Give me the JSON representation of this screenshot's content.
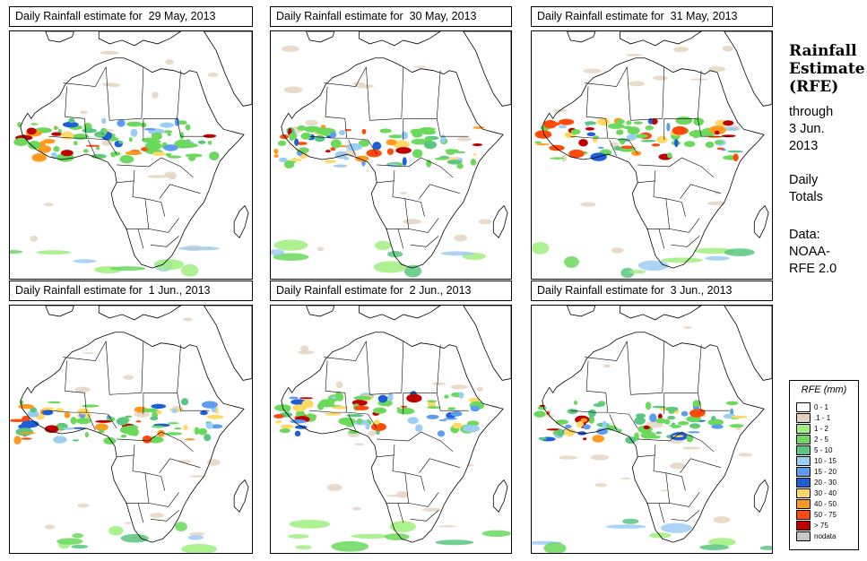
{
  "figure": {
    "panels": [
      {
        "title": "Daily Rainfall estimate for  29 May, 2013"
      },
      {
        "title": "Daily Rainfall estimate for  30 May, 2013"
      },
      {
        "title": "Daily Rainfall estimate for  31 May, 2013"
      },
      {
        "title": "Daily Rainfall estimate for  1 Jun., 2013"
      },
      {
        "title": "Daily Rainfall estimate for  2 Jun., 2013"
      },
      {
        "title": "Daily Rainfall estimate for  3 Jun., 2013"
      }
    ]
  },
  "sidebar": {
    "title_line1": "Rainfall",
    "title_line2": "Estimate",
    "title_line3": "(RFE)",
    "through_label": "through",
    "through_date_line1": "3 Jun.",
    "through_date_line2": "2013",
    "daily_line1": "Daily",
    "daily_line2": "Totals",
    "data_label": "Data:",
    "data_source_line1": "NOAA-",
    "data_source_line2": "RFE 2.0"
  },
  "legend": {
    "title": "RFE (mm)",
    "items": [
      {
        "label": "0 - 1",
        "color": "#ffffff"
      },
      {
        "label": ".1 - 1",
        "color": "#e3d2bc"
      },
      {
        "label": "1 - 2",
        "color": "#a0ef7e"
      },
      {
        "label": "2 - 5",
        "color": "#6ad95c"
      },
      {
        "label": "5 - 10",
        "color": "#59c780"
      },
      {
        "label": "10 - 15",
        "color": "#9ccdf5"
      },
      {
        "label": "15 - 20",
        "color": "#5d9df0"
      },
      {
        "label": "20 - 30",
        "color": "#1d5ed9"
      },
      {
        "label": "30 - 40",
        "color": "#ffd966"
      },
      {
        "label": "40 - 50",
        "color": "#ff9a1e"
      },
      {
        "label": "50 - 75",
        "color": "#ff4a0a"
      },
      {
        "label": "> 75",
        "color": "#bf0000"
      },
      {
        "label": "nodata",
        "color": "#c8c8c8"
      }
    ]
  }
}
